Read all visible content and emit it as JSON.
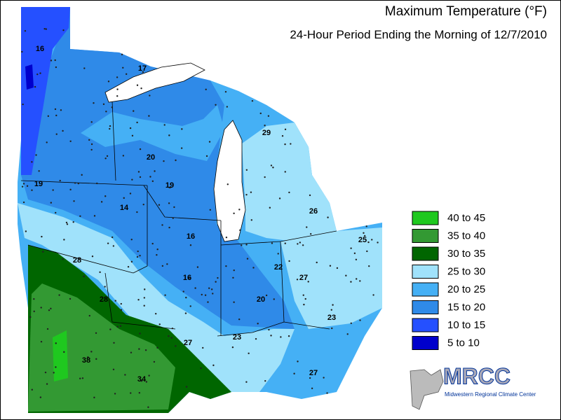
{
  "header": {
    "title": "Maximum Temperature (°F)",
    "subtitle": "24-Hour Period Ending the Morning of 12/7/2010"
  },
  "legend": [
    {
      "label": "40 to 45",
      "color": "#1fc81f"
    },
    {
      "label": "35 to 40",
      "color": "#339933"
    },
    {
      "label": "30 to 35",
      "color": "#006600"
    },
    {
      "label": "25 to 30",
      "color": "#a0e2fb"
    },
    {
      "label": "20 to 25",
      "color": "#45b0f5"
    },
    {
      "label": "15 to 20",
      "color": "#2f8ae8"
    },
    {
      "label": "10 to 15",
      "color": "#2550ff"
    },
    {
      "label": "5 to 10",
      "color": "#0000cc"
    }
  ],
  "station_labels": [
    16,
    17,
    29,
    20,
    19,
    19,
    14,
    26,
    16,
    25,
    28,
    22,
    27,
    16,
    28,
    20,
    23,
    23,
    27,
    38,
    27,
    34
  ],
  "logo": {
    "name": "MRCC",
    "full_name": "Midwestern Regional Climate Center"
  }
}
